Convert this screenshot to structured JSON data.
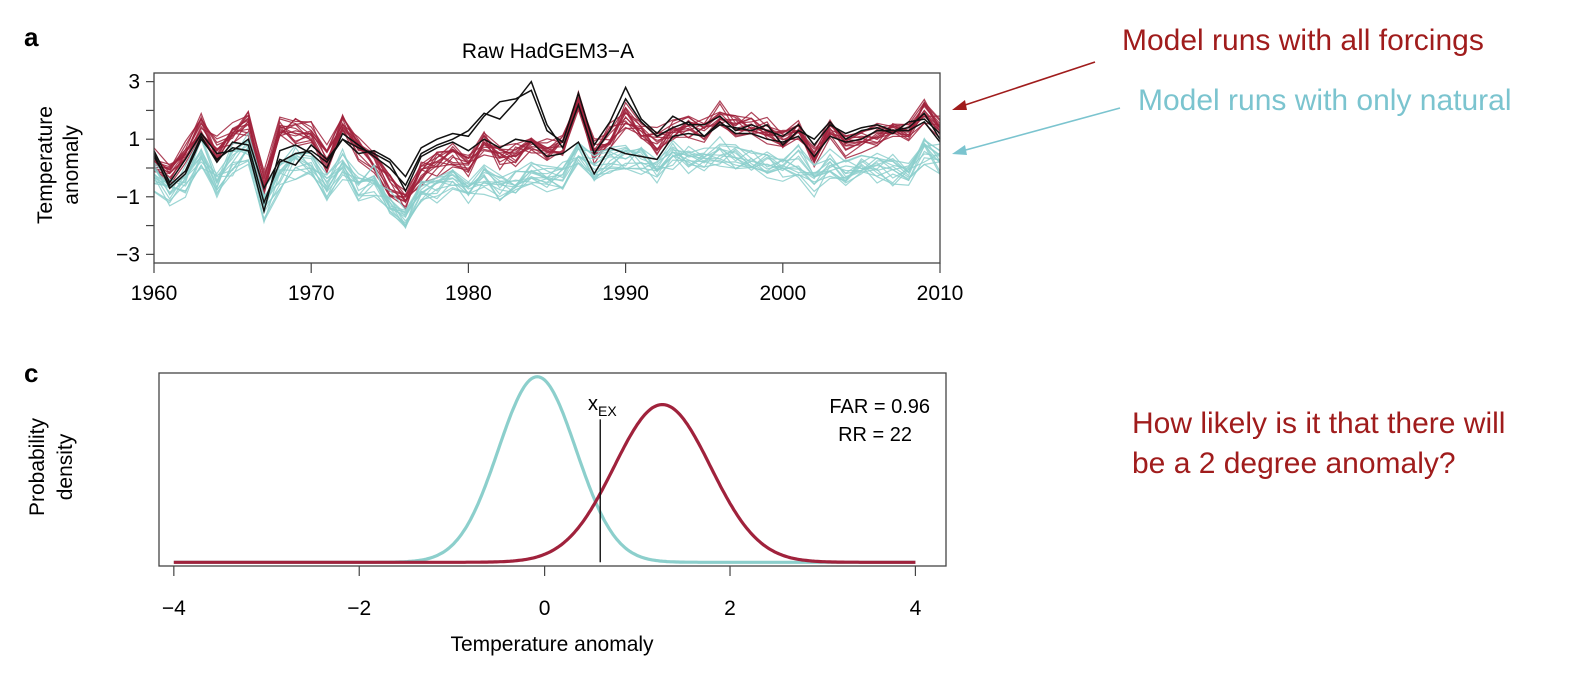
{
  "annotations": {
    "all_forcings": "Model runs with all forcings",
    "natural": "Model runs with only natural",
    "question_line1": "How likely is it that there will",
    "question_line2": "be a 2 degree anomaly?",
    "all_color": "#a01c1c",
    "natural_color": "#7bc4cf"
  },
  "chart_data": [
    {
      "panel": "a",
      "type": "line",
      "title": "Raw HadGEM3−A",
      "xlabel": "",
      "ylabel_line1": "Temperature",
      "ylabel_line2": "anomaly",
      "xlim": [
        1960,
        2010
      ],
      "ylim": [
        -3.3,
        3.3
      ],
      "xticks": [
        1960,
        1970,
        1980,
        1990,
        2000,
        2010
      ],
      "xtick_labels": [
        "1960",
        "1970",
        "1980",
        "1990",
        "2000",
        "2010"
      ],
      "yticks": [
        -3,
        -2,
        -1,
        0,
        1,
        2,
        3
      ],
      "ytick_labels": [
        "−3",
        "",
        "−1",
        "",
        "1",
        "",
        "3"
      ],
      "series_groups": [
        {
          "group": "all-forcings",
          "color": "#a0223c",
          "mean": [
            0.3,
            -0.2,
            0.5,
            1.5,
            0.6,
            1.2,
            1.6,
            -0.6,
            1.4,
            1.3,
            1.2,
            0.3,
            1.5,
            0.7,
            0.2,
            -0.6,
            -1.2,
            -0.2,
            0.2,
            0.4,
            0.1,
            0.9,
            0.4,
            0.5,
            0.9,
            0.5,
            0.8,
            2.3,
            0.6,
            1.1,
            1.8,
            1.2,
            0.9,
            1.3,
            1.4,
            1.3,
            1.9,
            1.5,
            1.5,
            1.3,
            0.9,
            1.2,
            0.3,
            1.4,
            0.8,
            1.0,
            1.2,
            1.3,
            1.3,
            2.0,
            1.4
          ],
          "runs": 15,
          "spread": 0.45
        },
        {
          "group": "natural-only",
          "color": "#8ccfcc",
          "mean": [
            -0.3,
            -0.8,
            -0.4,
            0.5,
            -0.4,
            0.3,
            0.6,
            -1.3,
            -0.3,
            0.2,
            0.1,
            -0.6,
            0.2,
            -0.6,
            -0.5,
            -1.3,
            -1.8,
            -0.8,
            -0.7,
            -0.4,
            -0.7,
            -0.3,
            -0.6,
            -0.5,
            -0.2,
            -0.3,
            -0.2,
            0.5,
            0.0,
            0.3,
            0.4,
            0.3,
            0.0,
            0.4,
            0.4,
            0.2,
            0.5,
            0.4,
            0.3,
            0.2,
            0.0,
            0.2,
            -0.4,
            0.1,
            -0.2,
            0.1,
            0.0,
            -0.1,
            -0.1,
            0.6,
            0.3
          ],
          "runs": 15,
          "spread": 0.5
        },
        {
          "group": "observations",
          "color": "#111111",
          "series": [
            {
              "values": [
                0.5,
                -0.7,
                -0.2,
                1.0,
                0.3,
                0.7,
                0.6,
                -1.5,
                0.6,
                0.8,
                0.5,
                0.0,
                1.2,
                0.8,
                0.4,
                0.0,
                -0.6,
                0.5,
                0.8,
                1.0,
                1.3,
                1.9,
                1.7,
                2.3,
                3.0,
                1.5,
                0.7,
                2.2,
                0.5,
                1.3,
                2.4,
                1.6,
                1.1,
                1.4,
                1.6,
                1.1,
                1.5,
                1.4,
                1.3,
                1.5,
                0.8,
                1.3,
                1.0,
                1.6,
                1.0,
                1.3,
                1.4,
                1.2,
                1.6,
                1.7,
                1.2
              ]
            },
            {
              "values": [
                0.4,
                -0.6,
                -0.1,
                1.1,
                0.2,
                0.9,
                0.8,
                -1.2,
                0.2,
                0.5,
                0.6,
                0.2,
                1.0,
                0.5,
                0.6,
                0.3,
                -0.3,
                0.7,
                1.0,
                1.2,
                1.1,
                1.8,
                2.3,
                2.4,
                2.7,
                1.3,
                0.9,
                2.6,
                0.8,
                1.6,
                2.8,
                1.7,
                1.2,
                1.8,
                1.5,
                1.5,
                1.8,
                1.3,
                1.5,
                1.3,
                1.1,
                1.5,
                0.8,
                1.5,
                1.2,
                1.4,
                1.5,
                1.3,
                1.4,
                1.9,
                1.0
              ]
            },
            {
              "values": [
                0.6,
                -0.5,
                0.3,
                1.2,
                0.5,
                0.6,
                1.0,
                -0.7,
                0.3,
                0.1,
                0.8,
                0.3,
                1.0,
                0.7,
                0.5,
                0.2,
                -0.8,
                0.4,
                0.7,
                0.9,
                0.6,
                1.0,
                0.7,
                1.0,
                0.9,
                0.4,
                0.5,
                0.9,
                -0.2,
                0.7,
                0.5,
                0.4,
                0.3,
                1.1,
                1.2,
                1.1,
                1.6,
                1.2,
                1.2,
                1.0,
                0.9,
                1.1,
                0.4,
                1.1,
                0.9,
                1.0,
                1.3,
                1.3,
                1.3,
                1.6,
                0.9
              ]
            }
          ]
        }
      ]
    },
    {
      "panel": "c",
      "type": "line",
      "title": "",
      "xlabel": "Temperature anomaly",
      "ylabel_line1": "Probability",
      "ylabel_line2": "density",
      "xlim": [
        -4.16,
        4.33
      ],
      "ylim": [
        -0.02,
        1.02
      ],
      "xticks": [
        -4,
        -2,
        0,
        2,
        4
      ],
      "xtick_labels": [
        "−4",
        "−2",
        "0",
        "2",
        "4"
      ],
      "series": [
        {
          "color": "#8ccfcc",
          "mu": -0.08,
          "sigma": 0.42,
          "peak": 1.0
        },
        {
          "color": "#a0223c",
          "mu": 1.27,
          "sigma": 0.52,
          "peak": 0.85
        }
      ],
      "threshold_x": 0.6,
      "threshold_label": "x",
      "threshold_sub": "EX",
      "far_label": "FAR = 0.96",
      "rr_label": "RR = 22"
    }
  ]
}
